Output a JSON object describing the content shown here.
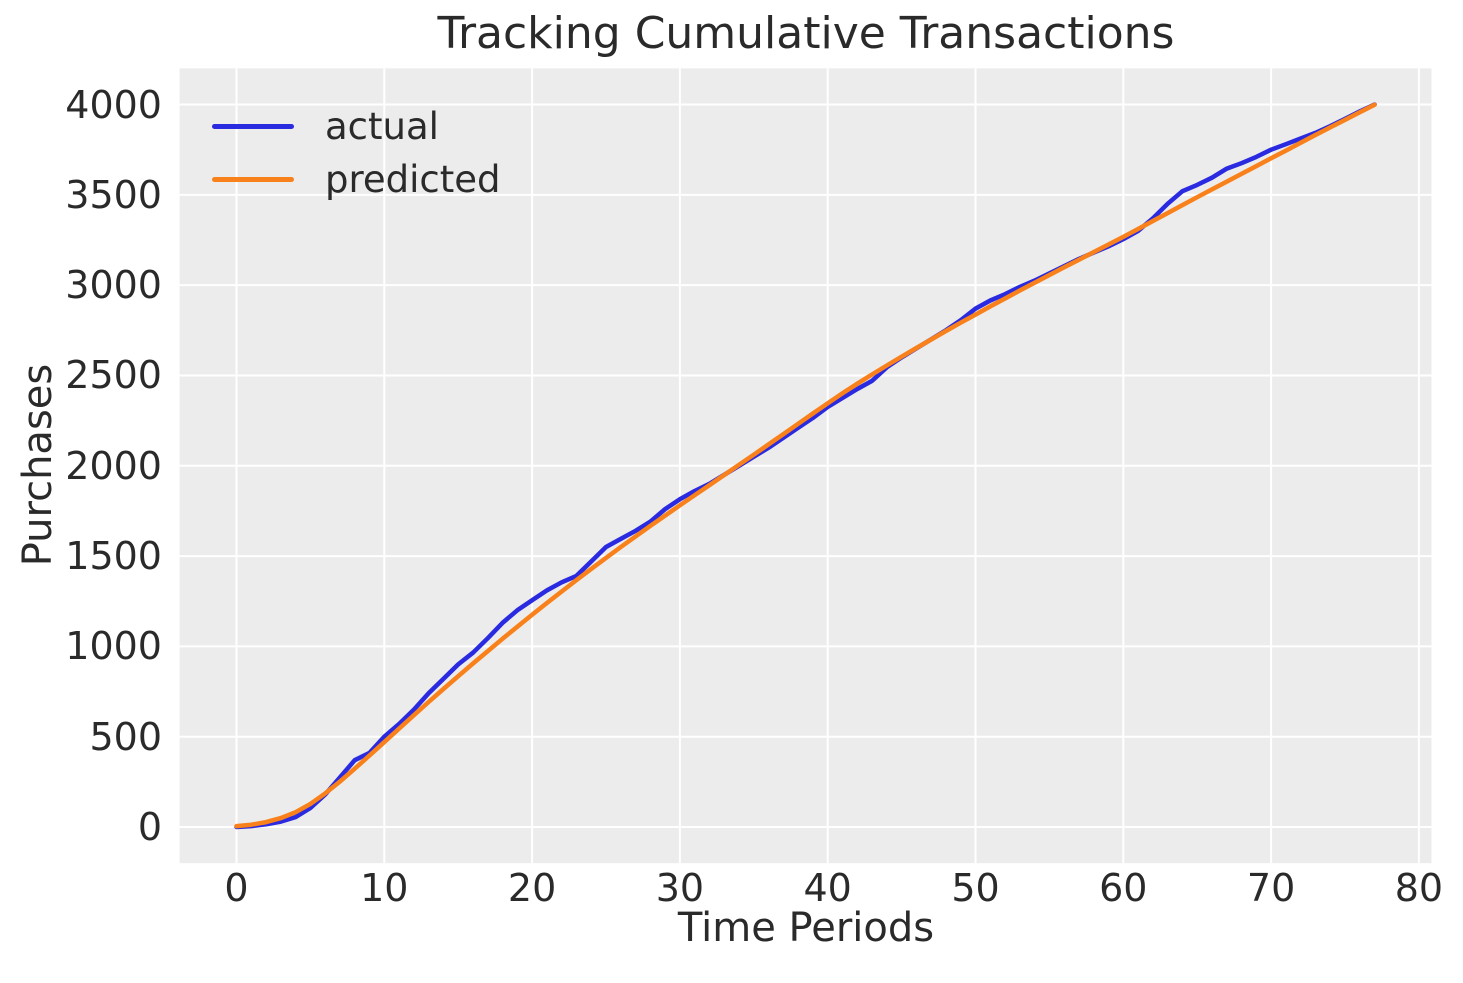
{
  "page": {
    "background": "#ffffff"
  },
  "chart_data": {
    "type": "line",
    "title": "Tracking Cumulative Transactions",
    "xlabel": "Time Periods",
    "ylabel": "Purchases",
    "grid": true,
    "plot_background": "#ececec",
    "grid_color": "#ffffff",
    "text_color": "#2a2a2a",
    "x_ticks": [
      0,
      10,
      20,
      30,
      40,
      50,
      60,
      70,
      80
    ],
    "y_ticks": [
      0,
      500,
      1000,
      1500,
      2000,
      2500,
      3000,
      3500,
      4000
    ],
    "xlim": [
      -3.85,
      80.85
    ],
    "ylim": [
      -200,
      4200
    ],
    "legend_position": "upper left",
    "x": [
      0,
      1,
      2,
      3,
      4,
      5,
      6,
      7,
      8,
      9,
      10,
      11,
      12,
      13,
      14,
      15,
      16,
      17,
      18,
      19,
      20,
      21,
      22,
      23,
      24,
      25,
      26,
      27,
      28,
      29,
      30,
      31,
      32,
      33,
      34,
      35,
      36,
      37,
      38,
      39,
      40,
      41,
      42,
      43,
      44,
      45,
      46,
      47,
      48,
      49,
      50,
      51,
      52,
      53,
      54,
      55,
      56,
      57,
      58,
      59,
      60,
      61,
      62,
      63,
      64,
      65,
      66,
      67,
      68,
      69,
      70,
      71,
      72,
      73,
      74,
      75,
      76,
      77
    ],
    "series": [
      {
        "name": "actual",
        "color": "#2a2ae0",
        "values": [
          0,
          5,
          15,
          30,
          55,
          105,
          180,
          275,
          370,
          410,
          500,
          570,
          650,
          740,
          820,
          900,
          965,
          1045,
          1130,
          1200,
          1255,
          1310,
          1355,
          1390,
          1470,
          1550,
          1595,
          1640,
          1690,
          1760,
          1815,
          1860,
          1900,
          1950,
          2000,
          2050,
          2100,
          2155,
          2210,
          2265,
          2325,
          2375,
          2425,
          2470,
          2545,
          2600,
          2650,
          2700,
          2750,
          2805,
          2870,
          2915,
          2950,
          2990,
          3025,
          3065,
          3105,
          3145,
          3180,
          3215,
          3255,
          3300,
          3370,
          3450,
          3520,
          3555,
          3595,
          3645,
          3675,
          3710,
          3750,
          3780,
          3812,
          3843,
          3880,
          3920,
          3962,
          4000
        ]
      },
      {
        "name": "predicted",
        "color": "#f8811c",
        "values": [
          5,
          13,
          27,
          49,
          82,
          128,
          186,
          252,
          323,
          396,
          470,
          545,
          619,
          692,
          764,
          835,
          905,
          974,
          1042,
          1109,
          1175,
          1240,
          1304,
          1367,
          1429,
          1490,
          1550,
          1609,
          1667,
          1724,
          1781,
          1837,
          1893,
          1949,
          2005,
          2061,
          2118,
          2175,
          2232,
          2289,
          2346,
          2401,
          2454,
          2505,
          2555,
          2604,
          2652,
          2699,
          2746,
          2792,
          2837,
          2882,
          2926,
          2970,
          3013,
          3056,
          3099,
          3141,
          3183,
          3225,
          3267,
          3311,
          3355,
          3399,
          3443,
          3487,
          3530,
          3573,
          3616,
          3659,
          3702,
          3745,
          3788,
          3831,
          3873,
          3915,
          3957,
          3999
        ]
      }
    ]
  }
}
